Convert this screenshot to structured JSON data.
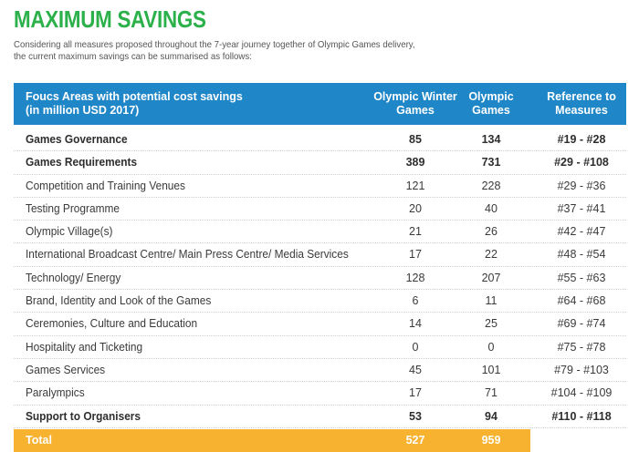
{
  "title": "MAXIMUM SAVINGS",
  "intro": {
    "line1": "Considering all measures proposed throughout the 7-year journey together of Olympic Games delivery,",
    "line2": "the current maximum savings can be summarised as follows:"
  },
  "table": {
    "headers": {
      "area_line1": "Foucs Areas with potential cost savings",
      "area_line2": "(in million USD 2017)",
      "winter_line1": "Olympic Winter",
      "winter_line2": "Games",
      "summer_line1": "Olympic",
      "summer_line2": "Games",
      "ref_line1": "Reference to",
      "ref_line2": "Measures"
    },
    "rows": [
      {
        "name": "Games Governance",
        "winter": "85",
        "summer": "134",
        "ref": "#19 - #28",
        "bold": true
      },
      {
        "name": "Games Requirements",
        "winter": "389",
        "summer": "731",
        "ref": "#29 - #108",
        "bold": true
      },
      {
        "name": "Competition and Training Venues",
        "winter": "121",
        "summer": "228",
        "ref": "#29 - #36",
        "bold": false
      },
      {
        "name": "Testing Programme",
        "winter": "20",
        "summer": "40",
        "ref": "#37 - #41",
        "bold": false
      },
      {
        "name": "Olympic Village(s)",
        "winter": "21",
        "summer": "26",
        "ref": "#42 - #47",
        "bold": false
      },
      {
        "name": "International Broadcast Centre/ Main Press Centre/ Media Services",
        "winter": "17",
        "summer": "22",
        "ref": "#48 - #54",
        "bold": false
      },
      {
        "name": "Technology/ Energy",
        "winter": "128",
        "summer": "207",
        "ref": "#55 - #63",
        "bold": false
      },
      {
        "name": "Brand, Identity and Look of the Games",
        "winter": "6",
        "summer": "11",
        "ref": "#64 - #68",
        "bold": false
      },
      {
        "name": "Ceremonies, Culture and Education",
        "winter": "14",
        "summer": "25",
        "ref": "#69 - #74",
        "bold": false
      },
      {
        "name": "Hospitality and Ticketing",
        "winter": "0",
        "summer": "0",
        "ref": "#75 - #78",
        "bold": false
      },
      {
        "name": "Games Services",
        "winter": "45",
        "summer": "101",
        "ref": "#79 - #103",
        "bold": false
      },
      {
        "name": "Paralympics",
        "winter": "17",
        "summer": "71",
        "ref": "#104 - #109",
        "bold": false
      },
      {
        "name": "Support to Organisers",
        "winter": "53",
        "summer": "94",
        "ref": "#110 - #118",
        "bold": true
      }
    ],
    "total": {
      "name": "Total",
      "winter": "527",
      "summer": "959"
    }
  },
  "colors": {
    "title": "#2bb04a",
    "header_bg": "#1f86c8",
    "total_bg": "#f7b230"
  }
}
